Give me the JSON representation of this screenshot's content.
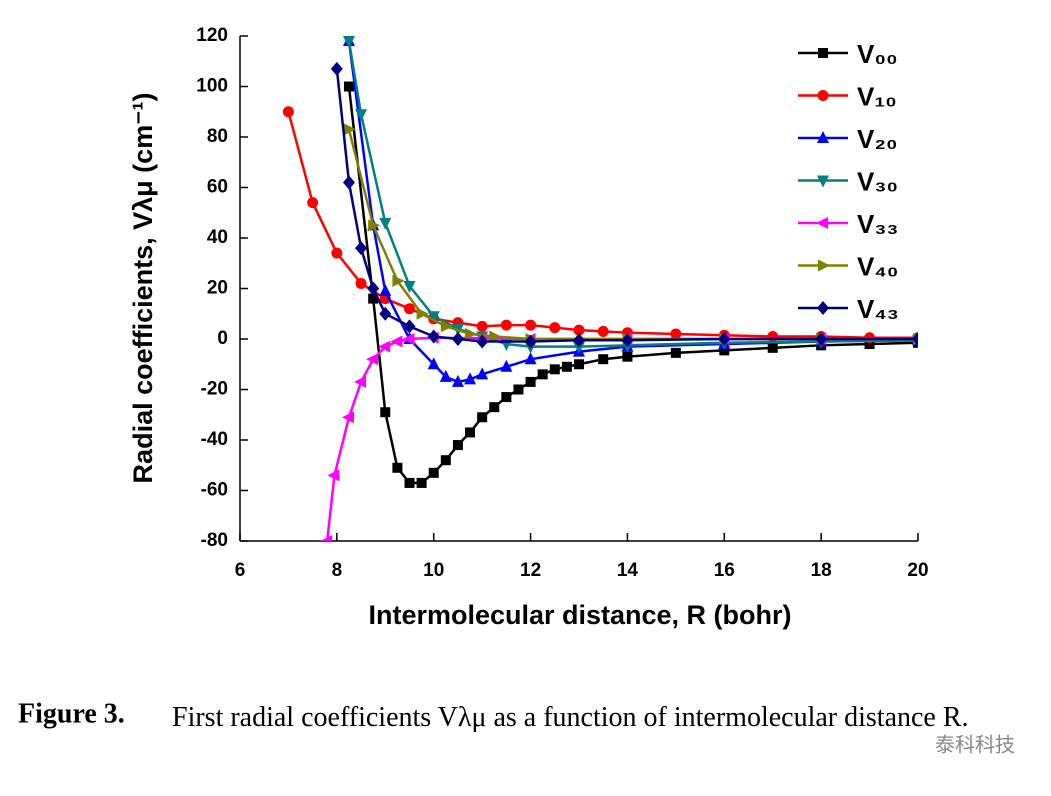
{
  "chart_data": {
    "type": "line",
    "xlabel": "Intermolecular distance, R (bohr)",
    "ylabel": "Radial coefficients, Vλμ (cm⁻¹)",
    "xlim": [
      6,
      20
    ],
    "ylim": [
      -80,
      120
    ],
    "xticks": [
      6,
      8,
      10,
      12,
      14,
      16,
      18,
      20
    ],
    "yticks": [
      -80,
      -60,
      -40,
      -20,
      0,
      20,
      40,
      60,
      80,
      100,
      120
    ],
    "legend": "upper right",
    "series": [
      {
        "name": "V₀₀",
        "color": "#000000",
        "marker": "square",
        "x": [
          8.25,
          8.75,
          9.0,
          9.25,
          9.5,
          9.75,
          10.0,
          10.25,
          10.5,
          10.75,
          11.0,
          11.25,
          11.5,
          11.75,
          12.0,
          12.25,
          12.5,
          12.75,
          13.0,
          13.5,
          14.0,
          15.0,
          16.0,
          17.0,
          18.0,
          19.0,
          20.0
        ],
        "values": [
          100,
          16,
          -29,
          -51,
          -57,
          -57,
          -53,
          -48,
          -42,
          -37,
          -31,
          -27,
          -23,
          -20,
          -17,
          -14,
          -12,
          -11,
          -10,
          -8,
          -7,
          -5.5,
          -4.5,
          -3.5,
          -2.5,
          -2,
          -1.5
        ]
      },
      {
        "name": "V₁₀",
        "color": "#ff0000",
        "marker": "circle",
        "x": [
          7.0,
          7.5,
          8.0,
          8.5,
          9.0,
          9.5,
          10.0,
          10.5,
          11.0,
          11.5,
          12.0,
          12.5,
          13.0,
          13.5,
          14.0,
          15.0,
          16.0,
          17.0,
          18.0,
          19.0,
          20.0
        ],
        "values": [
          90,
          54,
          34,
          22,
          16,
          12,
          8,
          6.5,
          5,
          5.5,
          5.5,
          4.5,
          3.5,
          3,
          2.5,
          2,
          1.5,
          1,
          1,
          0.5,
          0.5
        ]
      },
      {
        "name": "V₂₀",
        "color": "#0000ff",
        "marker": "triangle-up",
        "x": [
          8.25,
          8.75,
          9.0,
          9.5,
          10.0,
          10.25,
          10.5,
          10.75,
          11.0,
          11.5,
          12.0,
          13.0,
          14.0,
          16.0,
          18.0,
          20.0
        ],
        "values": [
          118,
          45,
          19,
          0,
          -10,
          -15,
          -17,
          -16,
          -14,
          -11,
          -8,
          -5,
          -3,
          -2,
          -1,
          -0.5
        ]
      },
      {
        "name": "V₃₀",
        "color": "#008080",
        "marker": "triangle-down",
        "x": [
          8.25,
          8.5,
          9.0,
          9.5,
          10.0,
          10.5,
          11.0,
          11.5,
          12.0,
          13.0,
          14.0,
          16.0,
          18.0,
          20.0
        ],
        "values": [
          118,
          89,
          46,
          21,
          9,
          4,
          1,
          -2,
          -3,
          -3,
          -2.5,
          -1.5,
          -1,
          -0.5
        ]
      },
      {
        "name": "V₃₃",
        "color": "#ff00ff",
        "marker": "triangle-left",
        "x": [
          7.8,
          7.95,
          8.25,
          8.5,
          8.75,
          9.0,
          9.25,
          9.5,
          10.0,
          11.0,
          12.0,
          14.0,
          16.0,
          18.0,
          20.0
        ],
        "values": [
          -80,
          -54,
          -31,
          -17,
          -8,
          -3,
          -1,
          0,
          0.5,
          0.3,
          0,
          0,
          0,
          0,
          0
        ]
      },
      {
        "name": "V₄₀",
        "color": "#808000",
        "marker": "triangle-right",
        "x": [
          8.25,
          8.75,
          9.25,
          9.75,
          10.25,
          10.75,
          11.25,
          12.0,
          14.0,
          16.0,
          18.0,
          20.0
        ],
        "values": [
          83,
          45,
          23,
          10,
          5,
          2,
          1,
          0,
          0,
          0,
          0,
          0
        ]
      },
      {
        "name": "V₄₃",
        "color": "#000080",
        "marker": "diamond",
        "x": [
          8.0,
          8.25,
          8.5,
          8.75,
          9.0,
          9.5,
          10.0,
          10.5,
          11.0,
          12.0,
          13.0,
          14.0,
          16.0,
          18.0,
          20.0
        ],
        "values": [
          107,
          62,
          36,
          20,
          10,
          5,
          1,
          0,
          -1,
          -1,
          -0.5,
          -0.5,
          0,
          0,
          0
        ]
      }
    ]
  },
  "caption": {
    "label": "Figure 3.",
    "text": "First radial coefficients Vλμ as a function of intermolecular distance R."
  },
  "watermark": "泰科科技"
}
